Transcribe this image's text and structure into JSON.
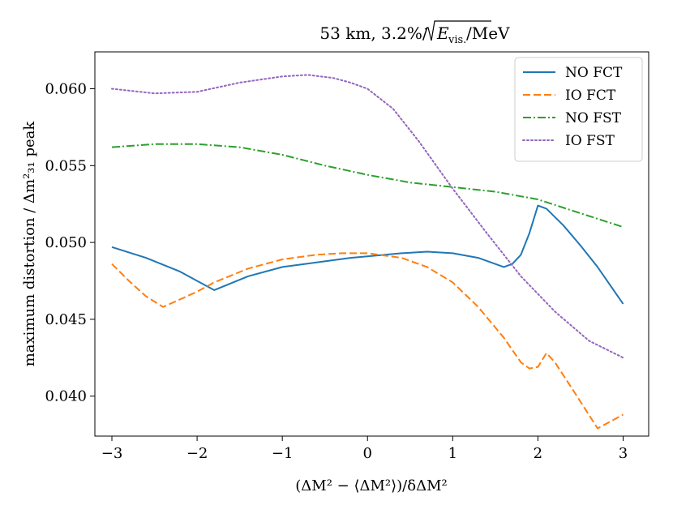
{
  "chart_data": {
    "type": "line",
    "title": "53 km, 3.2%/√E_vis./MeV",
    "title_parts": {
      "prefix": "53 km, 3.2%/",
      "e": "E",
      "sub": "vis.",
      "suffix": "/MeV"
    },
    "xlabel": "(ΔM² − ⟨ΔM²⟩)/δΔM²",
    "ylabel": "maximum distortion / Δm²₃₁ peak",
    "xlim": [
      -3.2,
      3.3
    ],
    "ylim": [
      0.0374,
      0.0624
    ],
    "xticks": [
      -3,
      -2,
      -1,
      0,
      1,
      2,
      3
    ],
    "xtick_labels": [
      "−3",
      "−2",
      "−1",
      "0",
      "1",
      "2",
      "3"
    ],
    "yticks": [
      0.04,
      0.045,
      0.05,
      0.055,
      0.06
    ],
    "ytick_labels": [
      "0.040",
      "0.045",
      "0.050",
      "0.055",
      "0.060"
    ],
    "grid": false,
    "legend_position": "top-right",
    "series": [
      {
        "name": "NO FCT",
        "color": "#1f77b4",
        "dash": "solid",
        "x": [
          -3,
          -2.6,
          -2.2,
          -1.8,
          -1.4,
          -1.0,
          -0.6,
          -0.2,
          0,
          0.4,
          0.7,
          1.0,
          1.3,
          1.6,
          1.7,
          1.8,
          1.9,
          2.0,
          2.1,
          2.3,
          2.5,
          2.7,
          3.0
        ],
        "y": [
          0.0497,
          0.049,
          0.0481,
          0.0469,
          0.0478,
          0.0484,
          0.0487,
          0.049,
          0.0491,
          0.0493,
          0.0494,
          0.0493,
          0.049,
          0.0484,
          0.0486,
          0.0492,
          0.0506,
          0.0524,
          0.0522,
          0.0511,
          0.0498,
          0.0484,
          0.046
        ]
      },
      {
        "name": "IO FCT",
        "color": "#ff7f0e",
        "dash": "dashed",
        "x": [
          -3,
          -2.8,
          -2.6,
          -2.4,
          -2.2,
          -2.0,
          -1.8,
          -1.4,
          -1.0,
          -0.6,
          -0.3,
          0,
          0.4,
          0.7,
          1.0,
          1.3,
          1.6,
          1.8,
          1.9,
          2.0,
          2.1,
          2.2,
          2.4,
          2.7,
          3.0
        ],
        "y": [
          0.0486,
          0.0475,
          0.0465,
          0.0458,
          0.0463,
          0.0468,
          0.0474,
          0.0483,
          0.0489,
          0.0492,
          0.0493,
          0.0493,
          0.049,
          0.0484,
          0.0474,
          0.0458,
          0.0438,
          0.0422,
          0.0418,
          0.0419,
          0.0428,
          0.0422,
          0.0405,
          0.0379,
          0.0388
        ]
      },
      {
        "name": "NO FST",
        "color": "#2ca02c",
        "dash": "dashdot",
        "x": [
          -3,
          -2.5,
          -2.0,
          -1.5,
          -1.0,
          -0.5,
          0,
          0.5,
          1.0,
          1.5,
          2.0,
          2.5,
          3.0
        ],
        "y": [
          0.0562,
          0.0564,
          0.0564,
          0.0562,
          0.0557,
          0.055,
          0.0544,
          0.0539,
          0.0536,
          0.0533,
          0.0528,
          0.0519,
          0.051
        ]
      },
      {
        "name": "IO FST",
        "color": "#9467bd",
        "dash": "dotted",
        "x": [
          -3,
          -2.5,
          -2.0,
          -1.5,
          -1.0,
          -0.7,
          -0.4,
          -0.2,
          0,
          0.3,
          0.6,
          1.0,
          1.4,
          1.8,
          2.2,
          2.6,
          3.0
        ],
        "y": [
          0.06,
          0.0597,
          0.0598,
          0.0604,
          0.0608,
          0.0609,
          0.0607,
          0.0604,
          0.06,
          0.0587,
          0.0566,
          0.0535,
          0.0506,
          0.0478,
          0.0455,
          0.0436,
          0.0425
        ]
      }
    ]
  }
}
